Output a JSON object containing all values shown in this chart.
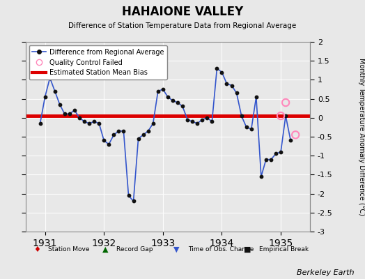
{
  "title": "HAHAIONE VALLEY",
  "subtitle": "Difference of Station Temperature Data from Regional Average",
  "ylabel_right": "Monthly Temperature Anomaly Difference (°C)",
  "bias_value": 0.05,
  "ylim": [
    -3,
    2
  ],
  "yticks": [
    -3,
    -2.5,
    -2,
    -1.5,
    -1,
    -0.5,
    0,
    0.5,
    1,
    1.5,
    2
  ],
  "background_color": "#e8e8e8",
  "plot_bg_color": "#e8e8e8",
  "line_color": "#3355cc",
  "dot_color": "#111111",
  "bias_color": "#dd0000",
  "qc_color": "#ff88bb",
  "footer": "Berkeley Earth",
  "time_values": [
    1930.917,
    1931.0,
    1931.083,
    1931.167,
    1931.25,
    1931.333,
    1931.417,
    1931.5,
    1931.583,
    1931.667,
    1931.75,
    1931.833,
    1931.917,
    1932.0,
    1932.083,
    1932.167,
    1932.25,
    1932.333,
    1932.417,
    1932.5,
    1932.583,
    1932.667,
    1932.75,
    1932.833,
    1932.917,
    1933.0,
    1933.083,
    1933.167,
    1933.25,
    1933.333,
    1933.417,
    1933.5,
    1933.583,
    1933.667,
    1933.75,
    1933.833,
    1933.917,
    1934.0,
    1934.083,
    1934.167,
    1934.25,
    1934.333,
    1934.417,
    1934.5,
    1934.583,
    1934.667,
    1934.75,
    1934.833,
    1934.917,
    1935.0,
    1935.083,
    1935.167
  ],
  "data_values": [
    -0.15,
    0.55,
    1.05,
    0.7,
    0.35,
    0.1,
    0.1,
    0.2,
    0.0,
    -0.1,
    -0.15,
    -0.1,
    -0.15,
    -0.6,
    -0.7,
    -0.45,
    -0.35,
    -0.35,
    -2.05,
    -2.2,
    -0.55,
    -0.45,
    -0.35,
    -0.15,
    0.7,
    0.75,
    0.55,
    0.45,
    0.4,
    0.3,
    -0.05,
    -0.1,
    -0.15,
    -0.05,
    0.0,
    -0.1,
    1.3,
    1.2,
    0.9,
    0.85,
    0.65,
    0.05,
    -0.25,
    -0.3,
    0.55,
    -1.55,
    -1.1,
    -1.1,
    -0.95,
    -0.9,
    0.05,
    -0.6
  ],
  "qc_failed_times": [
    1935.0,
    1935.083,
    1935.25
  ],
  "qc_failed_values": [
    0.05,
    0.4,
    -0.45
  ],
  "xlim": [
    1930.67,
    1935.5
  ],
  "xticks": [
    1931,
    1932,
    1933,
    1934,
    1935
  ]
}
